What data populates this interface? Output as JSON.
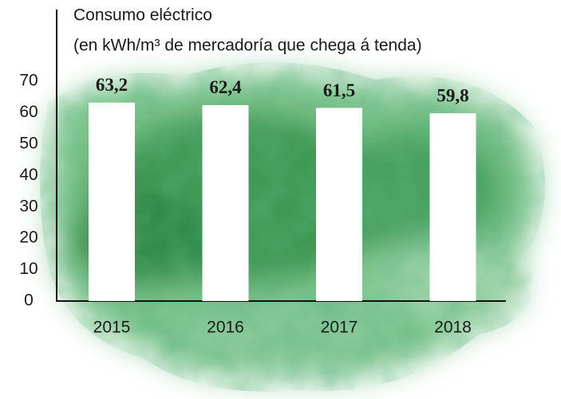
{
  "chart_data": {
    "type": "bar",
    "title": "Consumo eléctrico",
    "subtitle": "(en kWh/m³ de mercadoría que chega á tenda)",
    "categories": [
      "2015",
      "2016",
      "2017",
      "2018"
    ],
    "values": [
      63.2,
      62.4,
      61.5,
      59.8
    ],
    "value_labels": [
      "63,2",
      "62,4",
      "61,5",
      "59,8"
    ],
    "color": "#ffffff",
    "ylim": [
      0,
      70
    ],
    "yticks": [
      0,
      10,
      20,
      30,
      40,
      50,
      60,
      70
    ],
    "grid": false
  }
}
